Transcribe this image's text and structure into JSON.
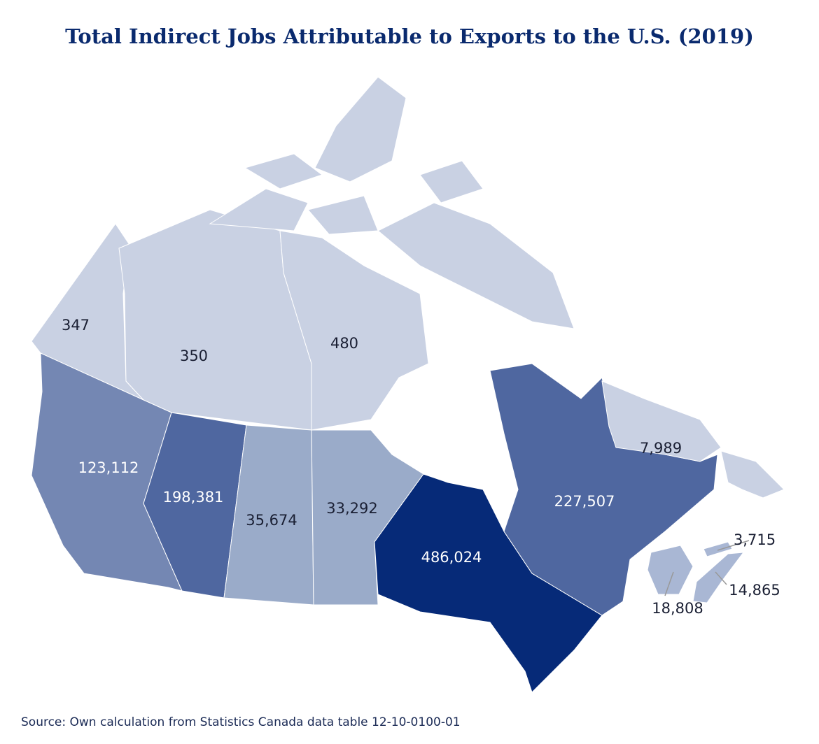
{
  "chart_data": {
    "type": "choropleth",
    "title": "Total Indirect Jobs Attributable to Exports to the U.S. (2019)",
    "source": "Source: Own calculation from Statistics Canada data table 12-10-0100-01",
    "values": [
      347,
      350,
      480,
      123112,
      198381,
      35674,
      33292,
      486024,
      227507,
      7989,
      3715,
      14865,
      18808
    ],
    "value_labels": [
      "347",
      "350",
      "480",
      "123,112",
      "198,381",
      "35,674",
      "33,292",
      "486,024",
      "227,507",
      "7,989",
      "3,715",
      "14,865",
      "18,808"
    ],
    "colors": [
      "#c9d1e3",
      "#c9d1e3",
      "#c9d1e3",
      "#7487b3",
      "#4f67a0",
      "#9aabc9",
      "#9aabc9",
      "#062a78",
      "#4f67a0",
      "#c9d1e3",
      "#a9b7d4",
      "#a9b7d4",
      "#a9b7d4"
    ]
  }
}
